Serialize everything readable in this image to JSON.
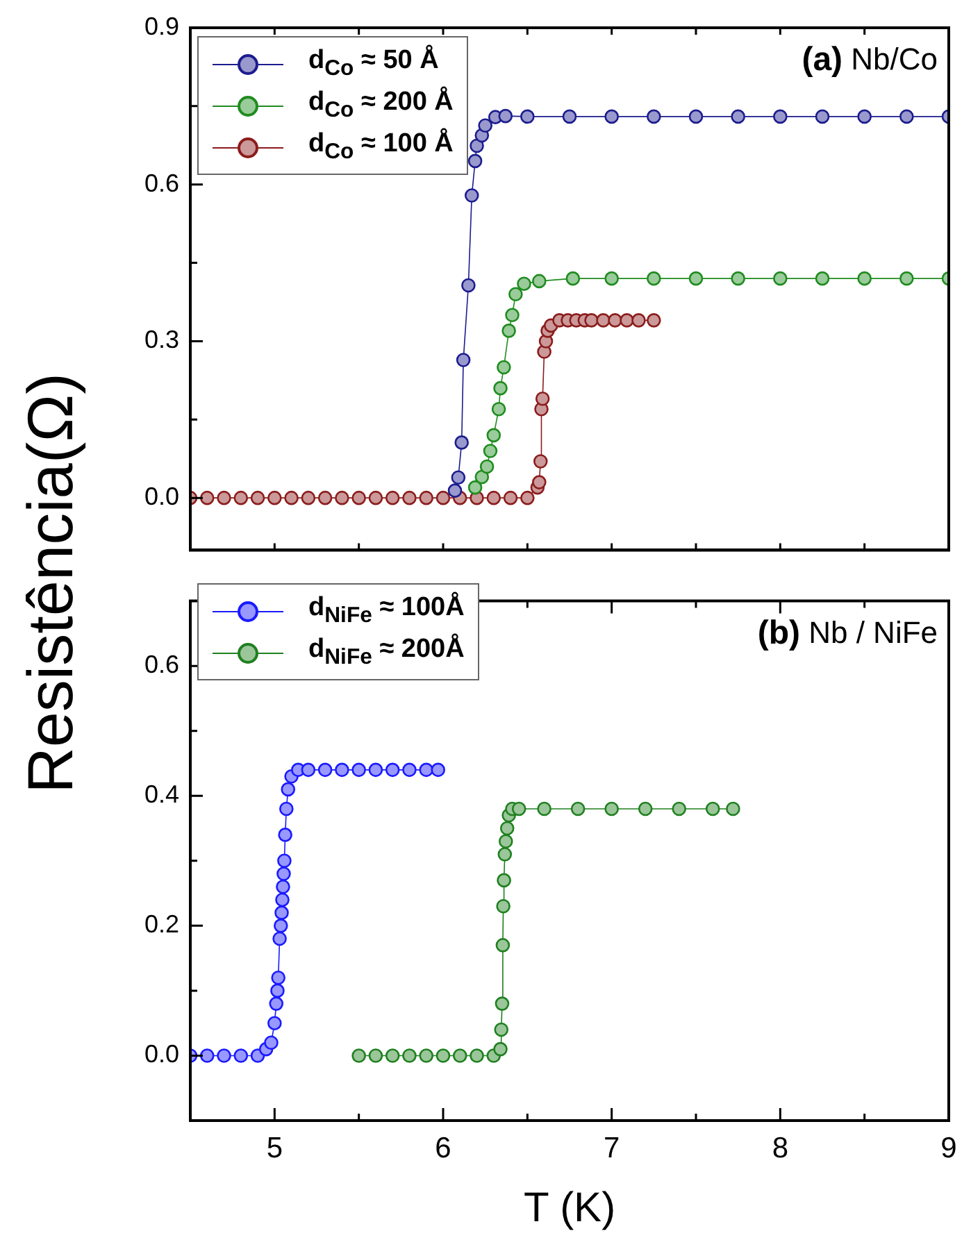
{
  "chart_data": [
    {
      "type": "line",
      "annotations": [
        "(a) Nb/Co"
      ],
      "ylabel": "Resistência(Ω)",
      "xlim": [
        4.5,
        9
      ],
      "ylim": [
        -0.1,
        0.9
      ],
      "xticks": [
        {
          "value": 5,
          "label": null
        },
        {
          "value": 5.5,
          "label": null
        },
        {
          "value": 6,
          "label": null
        },
        {
          "value": 6.5,
          "label": null
        },
        {
          "value": 7,
          "label": null
        },
        {
          "value": 7.5,
          "label": null
        },
        {
          "value": 8,
          "label": null
        },
        {
          "value": 8.5,
          "label": null
        },
        {
          "value": 9,
          "label": null
        }
      ],
      "yticks": [
        {
          "value": 0,
          "label": "0.0"
        },
        {
          "value": 0.15,
          "label": null
        },
        {
          "value": 0.3,
          "label": "0.3"
        },
        {
          "value": 0.45,
          "label": null
        },
        {
          "value": 0.6,
          "label": "0.6"
        },
        {
          "value": 0.75,
          "label": null
        },
        {
          "value": 0.9,
          "label": "0.9"
        }
      ],
      "tick_labels": "y",
      "legend": "top left",
      "marker": "circle",
      "grid": false,
      "series": [
        {
          "name": "d$_{Co}$ ≈ 50 Å",
          "color": "#1c1c8f",
          "x": [
            6.07,
            6.09,
            6.11,
            6.12,
            6.15,
            6.17,
            6.19,
            6.2,
            6.23,
            6.25,
            6.31,
            6.37,
            6.5,
            6.75,
            7,
            7.25,
            7.5,
            7.75,
            8,
            8.25,
            8.5,
            8.75,
            9
          ],
          "values": [
            0.014,
            0.039,
            0.106,
            0.264,
            0.407,
            0.579,
            0.645,
            0.674,
            0.694,
            0.713,
            0.729,
            0.731,
            0.73,
            0.73,
            0.73,
            0.73,
            0.73,
            0.73,
            0.73,
            0.73,
            0.73,
            0.73,
            0.73
          ]
        },
        {
          "name": "d$_{Co}$ ≈ 200 Å",
          "color": "#1f8c1f",
          "x": [
            6.19,
            6.23,
            6.26,
            6.28,
            6.3,
            6.33,
            6.34,
            6.36,
            6.39,
            6.41,
            6.43,
            6.48,
            6.57,
            6.77,
            7,
            7.25,
            7.5,
            7.75,
            8,
            8.25,
            8.5,
            8.75,
            9
          ],
          "values": [
            0.02,
            0.04,
            0.06,
            0.09,
            0.12,
            0.17,
            0.21,
            0.25,
            0.32,
            0.35,
            0.39,
            0.41,
            0.415,
            0.42,
            0.42,
            0.42,
            0.42,
            0.42,
            0.42,
            0.42,
            0.42,
            0.42,
            0.42
          ]
        },
        {
          "name": "d$_{Co}$ ≈ 100 Å",
          "color": "#8c1c1c",
          "x": [
            4.5,
            4.6,
            4.7,
            4.8,
            4.9,
            5.0,
            5.1,
            5.2,
            5.3,
            5.4,
            5.5,
            5.6,
            5.7,
            5.8,
            5.9,
            6.0,
            6.1,
            6.2,
            6.3,
            6.4,
            6.5,
            6.56,
            6.57,
            6.578,
            6.583,
            6.59,
            6.6,
            6.61,
            6.62,
            6.64,
            6.69,
            6.74,
            6.79,
            6.84,
            6.88,
            6.95,
            7.02,
            7.09,
            7.16,
            7.25
          ],
          "values": [
            0,
            0,
            0,
            0,
            0,
            0,
            0,
            0,
            0,
            0,
            0,
            0,
            0,
            0,
            0,
            0,
            0,
            0,
            0,
            0,
            0,
            0.02,
            0.03,
            0.07,
            0.17,
            0.19,
            0.28,
            0.3,
            0.32,
            0.33,
            0.34,
            0.34,
            0.34,
            0.34,
            0.34,
            0.34,
            0.34,
            0.34,
            0.34,
            0.34
          ]
        }
      ]
    },
    {
      "type": "line",
      "annotations": [
        "(b) Nb / NiFe"
      ],
      "xlabel": "T (K)",
      "xlim": [
        4.5,
        9
      ],
      "ylim": [
        -0.1,
        0.7
      ],
      "xticks": [
        {
          "value": 5,
          "label": "5"
        },
        {
          "value": 5.5,
          "label": null
        },
        {
          "value": 6,
          "label": "6"
        },
        {
          "value": 6.5,
          "label": null
        },
        {
          "value": 7,
          "label": "7"
        },
        {
          "value": 7.5,
          "label": null
        },
        {
          "value": 8,
          "label": "8"
        },
        {
          "value": 8.5,
          "label": null
        },
        {
          "value": 9,
          "label": "9"
        }
      ],
      "yticks": [
        {
          "value": 0,
          "label": "0.0"
        },
        {
          "value": 0.1,
          "label": null
        },
        {
          "value": 0.2,
          "label": "0.2"
        },
        {
          "value": 0.3,
          "label": null
        },
        {
          "value": 0.4,
          "label": "0.4"
        },
        {
          "value": 0.5,
          "label": null
        },
        {
          "value": 0.6,
          "label": "0.6"
        }
      ],
      "legend": "top left",
      "marker": "circle",
      "grid": false,
      "series": [
        {
          "name": "d$_{NiFe}$ ≈ 100Å",
          "color": "#1a1aff",
          "x": [
            4.5,
            4.6,
            4.7,
            4.8,
            4.9,
            4.95,
            4.98,
            5.0,
            5.01,
            5.017,
            5.022,
            5.03,
            5.037,
            5.042,
            5.046,
            5.05,
            5.054,
            5.058,
            5.063,
            5.07,
            5.08,
            5.1,
            5.14,
            5.2,
            5.3,
            5.4,
            5.5,
            5.6,
            5.7,
            5.8,
            5.9,
            5.97
          ],
          "values": [
            0,
            0,
            0,
            0,
            0,
            0.01,
            0.02,
            0.05,
            0.08,
            0.1,
            0.12,
            0.18,
            0.2,
            0.22,
            0.24,
            0.26,
            0.28,
            0.3,
            0.34,
            0.38,
            0.41,
            0.43,
            0.44,
            0.44,
            0.44,
            0.44,
            0.44,
            0.44,
            0.44,
            0.44,
            0.44,
            0.44
          ]
        },
        {
          "name": "d$_{NiFe}$ ≈  200Å",
          "color": "#1f801f",
          "x": [
            5.5,
            5.6,
            5.7,
            5.8,
            5.9,
            6.0,
            6.1,
            6.2,
            6.3,
            6.34,
            6.345,
            6.35,
            6.354,
            6.357,
            6.361,
            6.366,
            6.372,
            6.38,
            6.39,
            6.41,
            6.45,
            6.6,
            6.8,
            7.0,
            7.2,
            7.4,
            7.6,
            7.72
          ],
          "values": [
            0,
            0,
            0,
            0,
            0,
            0,
            0,
            0,
            0,
            0.01,
            0.04,
            0.08,
            0.17,
            0.23,
            0.27,
            0.31,
            0.33,
            0.35,
            0.37,
            0.38,
            0.38,
            0.38,
            0.38,
            0.38,
            0.38,
            0.38,
            0.38,
            0.38
          ]
        }
      ]
    }
  ]
}
